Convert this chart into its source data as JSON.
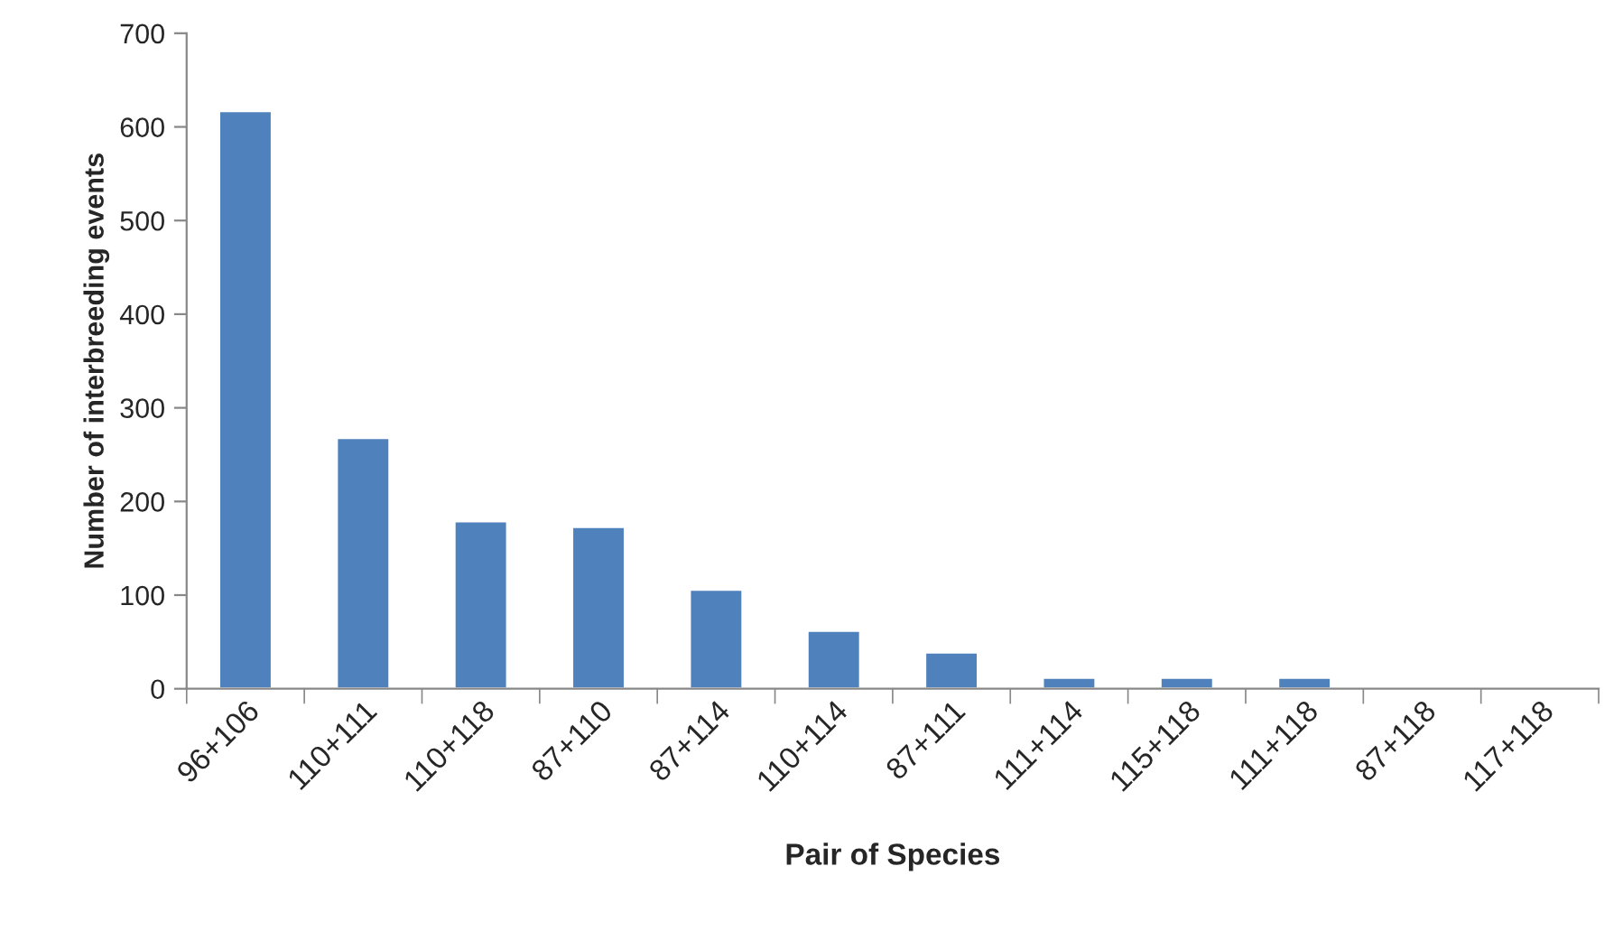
{
  "chart_data": {
    "type": "bar",
    "xlabel": "Pair of Species",
    "ylabel": "Number of interbreeding events",
    "categories": [
      "96+106",
      "110+111",
      "110+118",
      "87+110",
      "87+114",
      "110+114",
      "87+111",
      "111+114",
      "115+118",
      "111+118",
      "87+118",
      "117+118"
    ],
    "values": [
      617,
      268,
      179,
      173,
      106,
      62,
      39,
      12,
      12,
      12,
      1,
      1
    ],
    "color": "#4f81bd",
    "ylim": [
      0,
      700
    ],
    "yticks": [
      0,
      100,
      200,
      300,
      400,
      500,
      600,
      700
    ],
    "grid": false,
    "legend": false
  }
}
